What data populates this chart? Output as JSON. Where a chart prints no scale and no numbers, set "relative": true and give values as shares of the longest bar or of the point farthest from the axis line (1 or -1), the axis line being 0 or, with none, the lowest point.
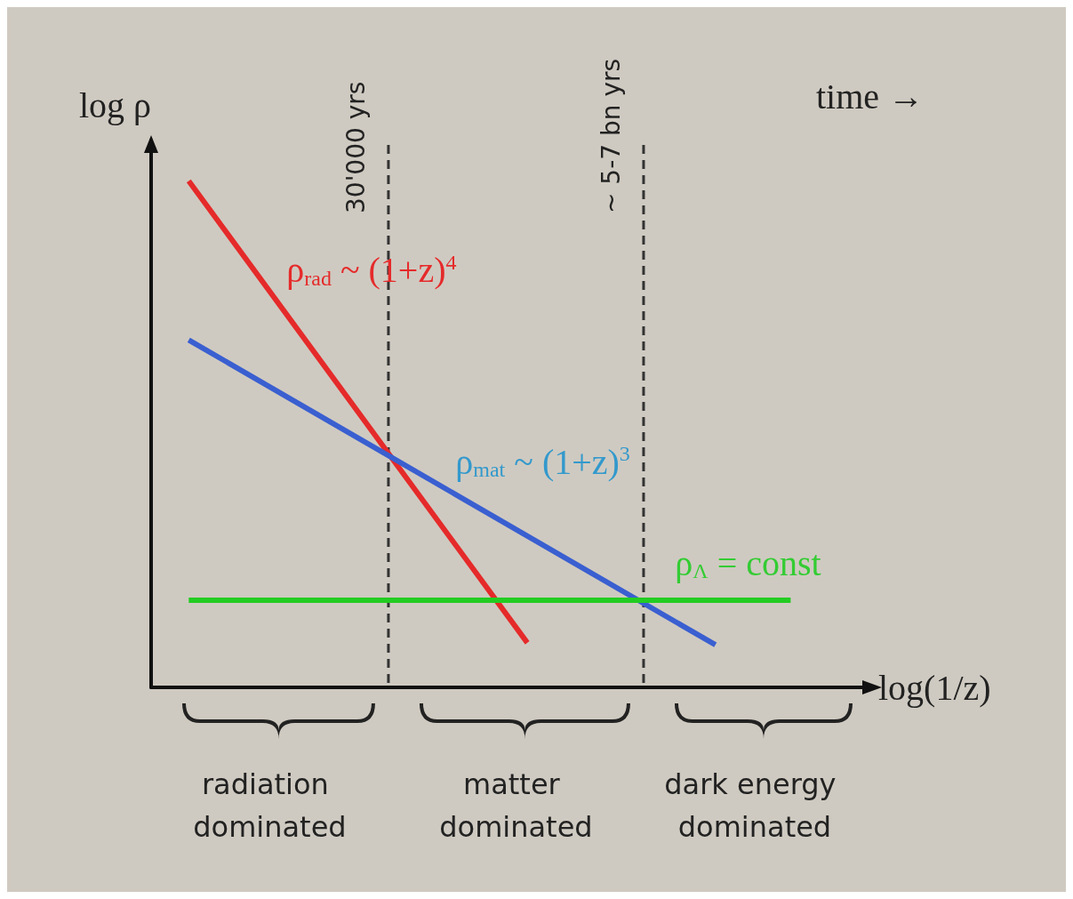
{
  "chart_data": {
    "type": "line",
    "relative": true,
    "xlabel": "log(1/z)",
    "ylabel": "log ρ",
    "categories": [
      null,
      null,
      null,
      null,
      null,
      null,
      null,
      null,
      null,
      null,
      null,
      null,
      null,
      null,
      null,
      null,
      null,
      null,
      null,
      null
    ],
    "grid": false,
    "legend": false,
    "marker": "none",
    "line_style": "solid",
    "series": [
      {
        "name": "ρ$_{rad}$ ~ (1+z)$^{4}$",
        "color": "#e52a2a",
        "values": [
          null,
          1,
          null,
          null,
          null,
          null,
          null,
          null,
          null,
          null,
          0.088,
          null,
          null,
          null,
          null,
          null,
          null,
          null,
          null,
          null
        ]
      },
      {
        "name": "ρ$_{mat}$ ~ (1+z)$^{3}$",
        "color": "#3a5fd0",
        "values": [
          null,
          0.686,
          null,
          null,
          null,
          null,
          null,
          null,
          null,
          null,
          null,
          null,
          null,
          null,
          null,
          0.084,
          null,
          null,
          null,
          null
        ]
      },
      {
        "name": "ρ$_{Λ}$ = const",
        "color": "#22cc22",
        "values": [
          null,
          0.172,
          null,
          null,
          null,
          null,
          null,
          null,
          null,
          null,
          null,
          null,
          null,
          null,
          null,
          null,
          null,
          0.172,
          null,
          null
        ]
      }
    ],
    "annotations": [
      "time →",
      "radiation dominated",
      "matter dominated",
      "dark energy dominated",
      "30'000 yrs",
      "~ 5-7 bn yrs"
    ]
  }
}
